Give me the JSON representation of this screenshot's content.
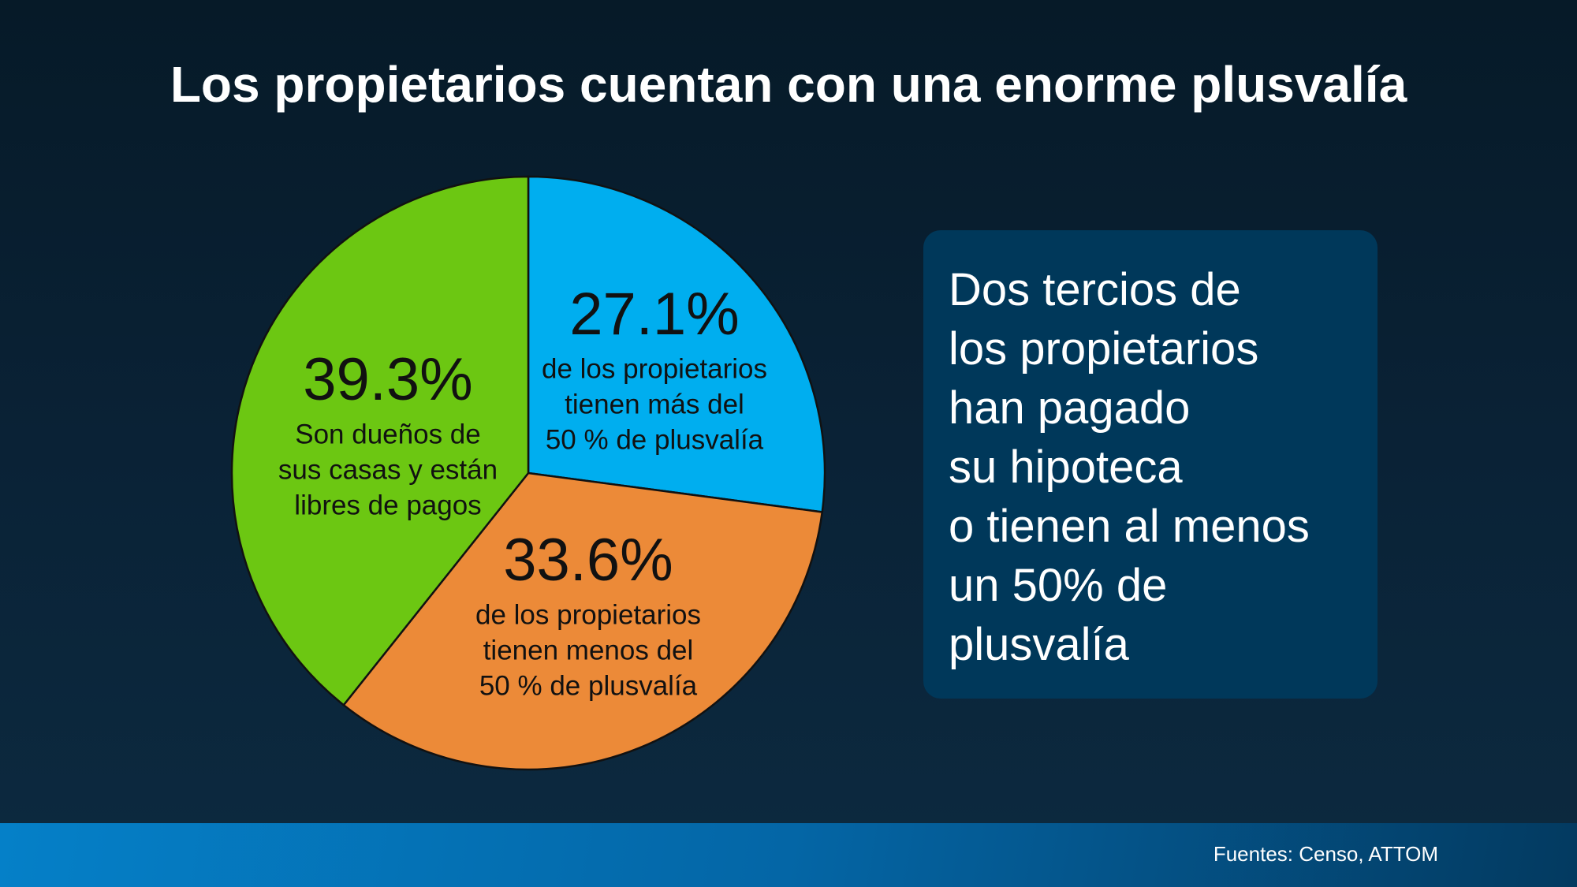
{
  "title": "Los propietarios cuentan con una enorme plusvalía",
  "chart_data": {
    "type": "pie",
    "title": "Los propietarios cuentan con una enorme plusvalía",
    "start_angle": "top",
    "direction": "clockwise",
    "slices": [
      {
        "name": "blue",
        "value": 27.1,
        "label": "27.1%",
        "lines": [
          "de los propietarios",
          "tienen más del",
          "50 % de plusvalía"
        ],
        "color": "#00aeef"
      },
      {
        "name": "orange",
        "value": 33.6,
        "label": "33.6%",
        "lines": [
          "de los propietarios",
          "tienen menos del",
          "50 % de plusvalía"
        ],
        "color": "#ec8a38"
      },
      {
        "name": "green",
        "value": 39.3,
        "label": "39.3%",
        "lines": [
          "Son dueños de",
          "sus casas y están",
          "libres de pagos"
        ],
        "color": "#6cc712"
      }
    ]
  },
  "callout": {
    "lines": [
      "Dos tercios de",
      "los propietarios",
      "han pagado",
      "su hipoteca",
      "o tienen al menos",
      "un 50% de",
      "plusvalía"
    ]
  },
  "footer": {
    "source": "Fuentes: Censo, ATTOM"
  }
}
